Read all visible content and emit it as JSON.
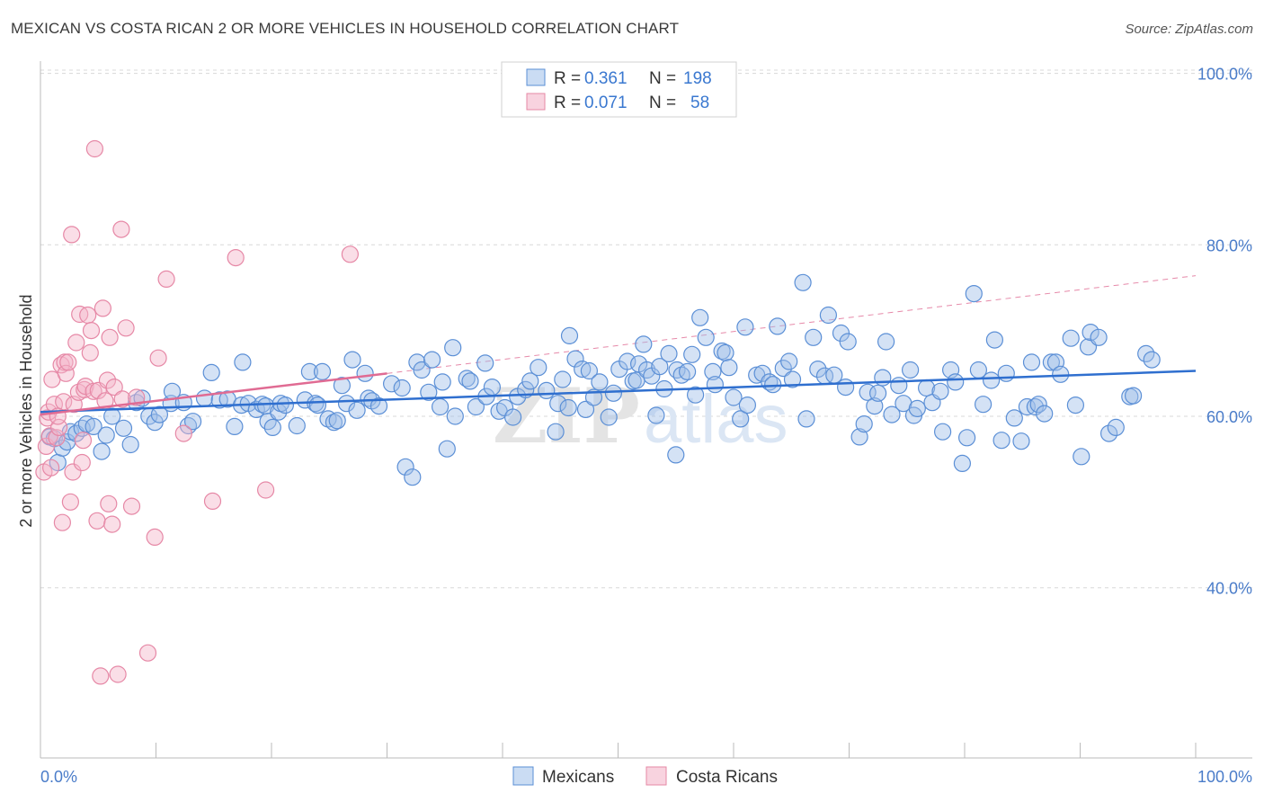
{
  "title": "MEXICAN VS COSTA RICAN 2 OR MORE VEHICLES IN HOUSEHOLD CORRELATION CHART",
  "source": "Source: ZipAtlas.com",
  "watermark": {
    "zip": "ZIP",
    "atlas": "atlas"
  },
  "colors": {
    "blue": "#9fbfe9",
    "blue_stroke": "#5b8fd6",
    "blue_line": "#2f6fcf",
    "pink": "#f4b6c9",
    "pink_stroke": "#e688a6",
    "pink_line": "#e06b93",
    "axis_text": "#4a7cc9",
    "grid": "#d8d8d8"
  },
  "legend": {
    "rows": [
      {
        "r_label": "R =",
        "r_value": "0.361",
        "n_label": "N =",
        "n_value": "198",
        "series": "blue"
      },
      {
        "r_label": "R =",
        "r_value": "0.071",
        "n_label": "N =",
        "n_value": "58",
        "series": "pink"
      }
    ]
  },
  "bottom_legend": [
    {
      "label": "Mexicans",
      "series": "blue"
    },
    {
      "label": "Costa Ricans",
      "series": "pink"
    }
  ],
  "chart_data": {
    "type": "scatter",
    "title": "MEXICAN VS COSTA RICAN 2 OR MORE VEHICLES IN HOUSEHOLD CORRELATION CHART",
    "xlabel": "",
    "ylabel": "2 or more Vehicles in Household",
    "xlim": [
      0,
      100
    ],
    "ylim": [
      20,
      102
    ],
    "x_tick_labels": [
      {
        "value": 0,
        "label": "0.0%"
      },
      {
        "value": 100,
        "label": "100.0%"
      }
    ],
    "y_tick_labels": [
      {
        "value": 100,
        "label": "100.0%"
      },
      {
        "value": 80,
        "label": "80.0%"
      },
      {
        "value": 60,
        "label": "60.0%"
      },
      {
        "value": 40,
        "label": "40.0%"
      }
    ],
    "x_minor_ticks": [
      0,
      10,
      20,
      30,
      40,
      50,
      60,
      70,
      80,
      90,
      100
    ],
    "grid": true,
    "legend_placement": "top-center",
    "series": [
      {
        "name": "Mexicans",
        "color": "blue",
        "stats": {
          "R": 0.361,
          "N": 198
        },
        "trend": {
          "x": [
            0,
            100
          ],
          "y": [
            60.5,
            65.3
          ]
        },
        "points": [
          [
            0.8,
            57.6
          ],
          [
            1.2,
            57.4
          ],
          [
            1.5,
            54.6
          ],
          [
            1.9,
            56.3
          ],
          [
            2.3,
            57.0
          ],
          [
            2.6,
            58.2
          ],
          [
            3.1,
            58.0
          ],
          [
            3.6,
            58.6
          ],
          [
            4.0,
            59.1
          ],
          [
            4.6,
            58.8
          ],
          [
            5.3,
            55.9
          ],
          [
            5.7,
            57.8
          ],
          [
            6.2,
            60.0
          ],
          [
            7.2,
            58.6
          ],
          [
            7.8,
            56.7
          ],
          [
            8.3,
            61.6
          ],
          [
            8.8,
            62.1
          ],
          [
            9.4,
            60.0
          ],
          [
            9.9,
            59.3
          ],
          [
            10.3,
            60.2
          ],
          [
            11.3,
            61.5
          ],
          [
            11.4,
            62.9
          ],
          [
            12.4,
            61.6
          ],
          [
            12.8,
            58.9
          ],
          [
            13.2,
            59.4
          ],
          [
            14.2,
            62.1
          ],
          [
            14.8,
            65.1
          ],
          [
            15.5,
            61.9
          ],
          [
            16.2,
            62.0
          ],
          [
            16.8,
            58.8
          ],
          [
            17.4,
            61.3
          ],
          [
            17.5,
            66.3
          ],
          [
            18.0,
            61.5
          ],
          [
            18.7,
            60.8
          ],
          [
            19.2,
            61.4
          ],
          [
            19.5,
            61.2
          ],
          [
            19.7,
            59.4
          ],
          [
            20.1,
            58.7
          ],
          [
            20.6,
            60.5
          ],
          [
            20.8,
            61.5
          ],
          [
            21.2,
            61.3
          ],
          [
            22.2,
            58.9
          ],
          [
            22.9,
            61.9
          ],
          [
            23.3,
            65.2
          ],
          [
            23.8,
            61.5
          ],
          [
            24.0,
            61.3
          ],
          [
            24.4,
            65.2
          ],
          [
            24.9,
            59.7
          ],
          [
            25.4,
            59.3
          ],
          [
            25.7,
            59.5
          ],
          [
            26.1,
            63.6
          ],
          [
            26.5,
            61.5
          ],
          [
            27.0,
            66.6
          ],
          [
            27.4,
            60.7
          ],
          [
            28.1,
            65.0
          ],
          [
            28.4,
            62.1
          ],
          [
            28.7,
            61.8
          ],
          [
            29.3,
            61.2
          ],
          [
            30.4,
            63.8
          ],
          [
            31.3,
            63.3
          ],
          [
            31.6,
            54.1
          ],
          [
            32.2,
            52.9
          ],
          [
            32.6,
            66.3
          ],
          [
            33.0,
            65.4
          ],
          [
            33.6,
            62.8
          ],
          [
            33.9,
            66.6
          ],
          [
            34.6,
            61.1
          ],
          [
            34.8,
            64.0
          ],
          [
            35.2,
            56.2
          ],
          [
            35.7,
            68.0
          ],
          [
            35.9,
            60.0
          ],
          [
            36.9,
            64.4
          ],
          [
            37.2,
            64.1
          ],
          [
            37.7,
            61.1
          ],
          [
            38.5,
            66.2
          ],
          [
            38.6,
            62.3
          ],
          [
            39.1,
            63.4
          ],
          [
            39.7,
            60.6
          ],
          [
            40.2,
            61.0
          ],
          [
            40.9,
            59.9
          ],
          [
            41.3,
            62.3
          ],
          [
            42.0,
            63.1
          ],
          [
            42.4,
            64.1
          ],
          [
            43.1,
            65.7
          ],
          [
            43.8,
            63.0
          ],
          [
            44.6,
            58.2
          ],
          [
            44.8,
            61.5
          ],
          [
            45.2,
            64.3
          ],
          [
            45.7,
            61.0
          ],
          [
            45.8,
            69.4
          ],
          [
            46.3,
            66.7
          ],
          [
            46.9,
            65.5
          ],
          [
            47.2,
            60.8
          ],
          [
            47.5,
            65.3
          ],
          [
            47.9,
            62.2
          ],
          [
            48.4,
            64.0
          ],
          [
            49.2,
            59.9
          ],
          [
            49.6,
            62.7
          ],
          [
            50.1,
            65.5
          ],
          [
            50.8,
            66.4
          ],
          [
            51.3,
            64.1
          ],
          [
            51.6,
            64.2
          ],
          [
            51.8,
            66.1
          ],
          [
            52.2,
            68.4
          ],
          [
            52.5,
            65.4
          ],
          [
            52.9,
            64.7
          ],
          [
            53.3,
            60.1
          ],
          [
            53.6,
            65.8
          ],
          [
            54.0,
            63.2
          ],
          [
            54.4,
            67.3
          ],
          [
            55.0,
            55.5
          ],
          [
            55.1,
            65.4
          ],
          [
            55.5,
            64.8
          ],
          [
            56.0,
            65.2
          ],
          [
            56.4,
            67.2
          ],
          [
            56.7,
            62.5
          ],
          [
            57.1,
            71.5
          ],
          [
            57.6,
            69.2
          ],
          [
            58.2,
            65.2
          ],
          [
            58.4,
            63.7
          ],
          [
            59.0,
            67.6
          ],
          [
            59.3,
            67.4
          ],
          [
            59.6,
            65.7
          ],
          [
            60.0,
            62.2
          ],
          [
            60.6,
            59.7
          ],
          [
            61.0,
            70.4
          ],
          [
            61.2,
            61.3
          ],
          [
            62.0,
            64.8
          ],
          [
            62.5,
            65.0
          ],
          [
            63.1,
            64.0
          ],
          [
            63.4,
            63.7
          ],
          [
            63.8,
            70.5
          ],
          [
            64.3,
            65.6
          ],
          [
            64.8,
            66.4
          ],
          [
            65.1,
            64.3
          ],
          [
            66.0,
            75.6
          ],
          [
            66.3,
            59.7
          ],
          [
            66.9,
            69.2
          ],
          [
            67.3,
            65.5
          ],
          [
            67.9,
            64.7
          ],
          [
            68.2,
            71.8
          ],
          [
            68.7,
            64.8
          ],
          [
            69.3,
            69.7
          ],
          [
            69.7,
            63.4
          ],
          [
            69.9,
            68.7
          ],
          [
            70.9,
            57.6
          ],
          [
            71.3,
            59.1
          ],
          [
            71.6,
            62.8
          ],
          [
            72.2,
            61.2
          ],
          [
            72.5,
            62.7
          ],
          [
            72.9,
            64.5
          ],
          [
            73.2,
            68.7
          ],
          [
            73.7,
            60.2
          ],
          [
            74.3,
            63.6
          ],
          [
            74.7,
            61.5
          ],
          [
            75.3,
            65.4
          ],
          [
            75.6,
            60.1
          ],
          [
            75.9,
            60.9
          ],
          [
            76.7,
            63.3
          ],
          [
            77.2,
            61.6
          ],
          [
            77.9,
            62.9
          ],
          [
            78.1,
            58.2
          ],
          [
            78.8,
            65.4
          ],
          [
            79.2,
            64.0
          ],
          [
            79.8,
            54.5
          ],
          [
            80.2,
            57.5
          ],
          [
            80.8,
            74.3
          ],
          [
            81.2,
            65.4
          ],
          [
            81.6,
            61.4
          ],
          [
            82.3,
            64.2
          ],
          [
            82.6,
            68.9
          ],
          [
            83.2,
            57.2
          ],
          [
            83.6,
            65.0
          ],
          [
            84.3,
            59.8
          ],
          [
            84.9,
            57.1
          ],
          [
            85.4,
            61.1
          ],
          [
            85.8,
            66.3
          ],
          [
            86.1,
            61.1
          ],
          [
            86.4,
            61.4
          ],
          [
            86.9,
            60.3
          ],
          [
            87.5,
            66.3
          ],
          [
            87.9,
            66.3
          ],
          [
            88.3,
            64.9
          ],
          [
            89.2,
            69.1
          ],
          [
            89.6,
            61.3
          ],
          [
            90.1,
            55.3
          ],
          [
            90.7,
            68.1
          ],
          [
            90.9,
            69.8
          ],
          [
            91.6,
            69.2
          ],
          [
            92.5,
            58.0
          ],
          [
            93.1,
            58.7
          ],
          [
            94.3,
            62.3
          ],
          [
            94.6,
            62.4
          ],
          [
            95.7,
            67.3
          ],
          [
            96.2,
            66.6
          ]
        ]
      },
      {
        "name": "Costa Ricans",
        "color": "pink",
        "stats": {
          "R": 0.071,
          "N": 58
        },
        "trend": {
          "x": [
            0,
            30
          ],
          "y": [
            60.2,
            65.0
          ]
        },
        "trend_extension": {
          "x": [
            30,
            100
          ],
          "y": [
            65.0,
            76.4
          ]
        },
        "points": [
          [
            0.3,
            53.5
          ],
          [
            0.5,
            56.5
          ],
          [
            0.6,
            59.8
          ],
          [
            0.7,
            60.5
          ],
          [
            0.8,
            57.7
          ],
          [
            0.9,
            54.0
          ],
          [
            1.0,
            64.3
          ],
          [
            1.2,
            61.4
          ],
          [
            1.4,
            57.5
          ],
          [
            1.6,
            58.7
          ],
          [
            1.8,
            66.0
          ],
          [
            1.9,
            47.6
          ],
          [
            2.0,
            61.7
          ],
          [
            2.1,
            66.3
          ],
          [
            2.2,
            65.0
          ],
          [
            2.4,
            66.3
          ],
          [
            2.6,
            50.0
          ],
          [
            2.7,
            81.2
          ],
          [
            2.8,
            53.5
          ],
          [
            2.9,
            61.4
          ],
          [
            3.1,
            68.6
          ],
          [
            3.3,
            62.8
          ],
          [
            3.4,
            71.9
          ],
          [
            3.6,
            54.6
          ],
          [
            3.7,
            57.2
          ],
          [
            3.8,
            63.1
          ],
          [
            3.9,
            63.5
          ],
          [
            4.1,
            71.8
          ],
          [
            4.3,
            67.4
          ],
          [
            4.4,
            70.0
          ],
          [
            4.6,
            62.9
          ],
          [
            4.7,
            91.2
          ],
          [
            4.9,
            47.8
          ],
          [
            5.0,
            63.0
          ],
          [
            5.2,
            29.7
          ],
          [
            5.4,
            72.6
          ],
          [
            5.6,
            61.8
          ],
          [
            5.8,
            64.2
          ],
          [
            5.9,
            49.8
          ],
          [
            6.0,
            69.2
          ],
          [
            6.2,
            47.4
          ],
          [
            6.4,
            63.4
          ],
          [
            6.7,
            29.9
          ],
          [
            7.0,
            81.8
          ],
          [
            7.1,
            62.0
          ],
          [
            7.4,
            70.3
          ],
          [
            7.9,
            49.5
          ],
          [
            8.3,
            62.2
          ],
          [
            9.3,
            32.4
          ],
          [
            9.9,
            45.9
          ],
          [
            10.2,
            66.8
          ],
          [
            10.9,
            76.0
          ],
          [
            12.4,
            58.0
          ],
          [
            14.9,
            50.1
          ],
          [
            16.9,
            78.5
          ],
          [
            19.5,
            51.4
          ],
          [
            26.8,
            78.9
          ],
          [
            1.5,
            60.0
          ]
        ]
      }
    ]
  }
}
